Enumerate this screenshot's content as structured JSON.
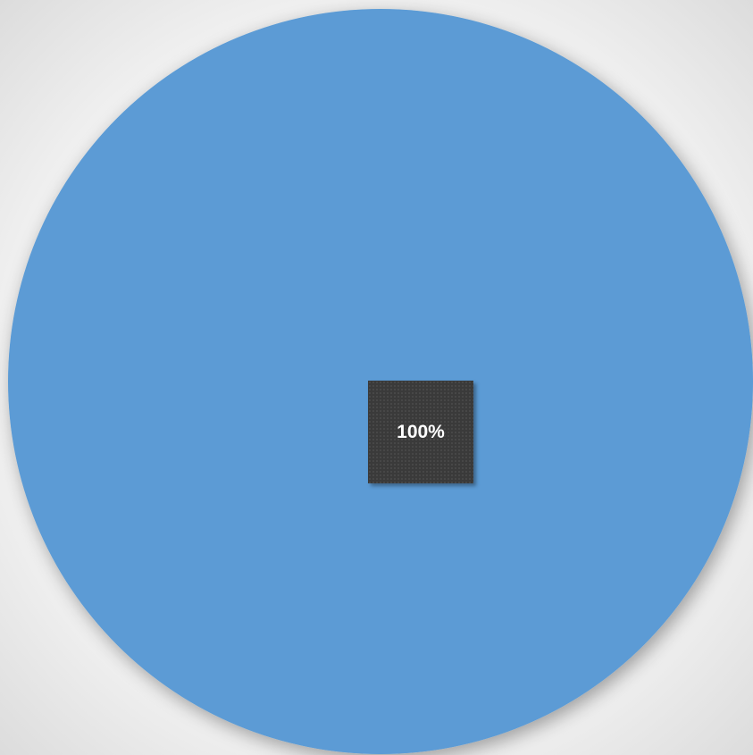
{
  "chart_data": {
    "type": "pie",
    "categories": [
      ""
    ],
    "values": [
      100
    ],
    "data_labels": [
      "100%"
    ],
    "colors": [
      "#5b9bd5"
    ],
    "label_box_color": "#3a3a3a",
    "legend": "none",
    "title": ""
  }
}
